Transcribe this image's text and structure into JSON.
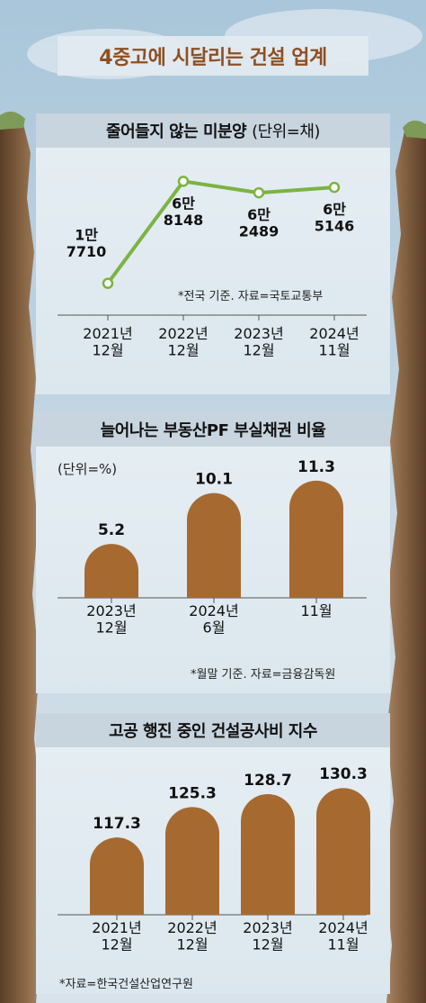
{
  "page_title": "4중고에 시달리는 건설 업계",
  "colors": {
    "title": "#8e4f22",
    "line": "#7cb342",
    "bar": "#a66a31",
    "text": "#111111"
  },
  "chart_data": [
    {
      "type": "line",
      "title": "줄어들지 않는 미분양",
      "unit": "(단위=채)",
      "categories": [
        "2021년\n12월",
        "2022년\n12월",
        "2023년\n12월",
        "2024년\n11월"
      ],
      "series": [
        {
          "values": [
            17710,
            68148,
            62489,
            65146
          ]
        }
      ],
      "data_labels": [
        "1만\n7710",
        "6만\n8148",
        "6만\n2489",
        "6만\n5146"
      ],
      "ylim": [
        10000,
        75000
      ],
      "note": "*전국 기준. 자료=국토교통부"
    },
    {
      "type": "bar",
      "title": "늘어나는 부동산PF 부실채권 비율",
      "unit": "(단위=%)",
      "categories": [
        "2023년\n12월",
        "2024년\n6월",
        "11월"
      ],
      "values": [
        5.2,
        10.1,
        11.3
      ],
      "data_labels": [
        "5.2",
        "10.1",
        "11.3"
      ],
      "ylim": [
        0,
        12.5
      ],
      "note": "*월말 기준. 자료=금융감독원"
    },
    {
      "type": "bar",
      "title": "고공 행진 중인 건설공사비 지수",
      "unit": "",
      "categories": [
        "2021년\n12월",
        "2022년\n12월",
        "2023년\n12월",
        "2024년\n11월"
      ],
      "values": [
        117.3,
        125.3,
        128.7,
        130.3
      ],
      "data_labels": [
        "117.3",
        "125.3",
        "128.7",
        "130.3"
      ],
      "ylim": [
        97,
        132
      ],
      "note": "*자료=한국건설산업연구원"
    }
  ]
}
